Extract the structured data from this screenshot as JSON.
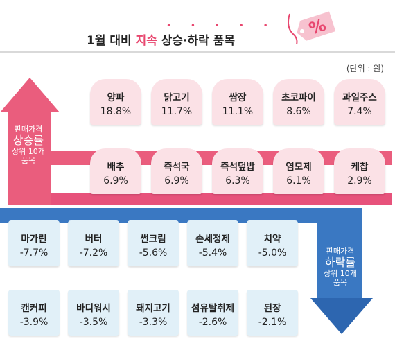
{
  "title": {
    "prefix": "1월 대비 ",
    "accent": "지속",
    "suffix": " 상승·하락 품목"
  },
  "tag_text": "%",
  "unit": "(단위 : 원)",
  "up_label": {
    "line1": "판매가격",
    "line2": "상승률",
    "line3": "상위 10개",
    "line4": "품목"
  },
  "down_label": {
    "line1": "판매가격",
    "line2": "하락률",
    "line3": "상위 10개",
    "line4": "품목"
  },
  "rising": [
    {
      "name": "양파",
      "value": "18.8%"
    },
    {
      "name": "닭고기",
      "value": "11.7%"
    },
    {
      "name": "쌈장",
      "value": "11.1%"
    },
    {
      "name": "초코파이",
      "value": "8.6%"
    },
    {
      "name": "과일주스",
      "value": "7.4%"
    },
    {
      "name": "배추",
      "value": "6.9%"
    },
    {
      "name": "즉석국",
      "value": "6.9%"
    },
    {
      "name": "즉석덮밥",
      "value": "6.3%"
    },
    {
      "name": "염모제",
      "value": "6.1%"
    },
    {
      "name": "케찹",
      "value": "2.9%"
    }
  ],
  "falling": [
    {
      "name": "마가린",
      "value": "-7.7%"
    },
    {
      "name": "버터",
      "value": "-7.2%"
    },
    {
      "name": "썬크림",
      "value": "-5.6%"
    },
    {
      "name": "손세정제",
      "value": "-5.4%"
    },
    {
      "name": "치약",
      "value": "-5.0%"
    },
    {
      "name": "캔커피",
      "value": "-3.9%"
    },
    {
      "name": "바디워시",
      "value": "-3.5%"
    },
    {
      "name": "돼지고기",
      "value": "-3.3%"
    },
    {
      "name": "섬유탈취제",
      "value": "-2.6%"
    },
    {
      "name": "된장",
      "value": "-2.1%"
    }
  ],
  "colors": {
    "accent": "#e8476f",
    "up": "#ea5d7d",
    "down": "#3a78c2",
    "up_card": "#fbe1e6",
    "down_card": "#e1f0f8"
  }
}
